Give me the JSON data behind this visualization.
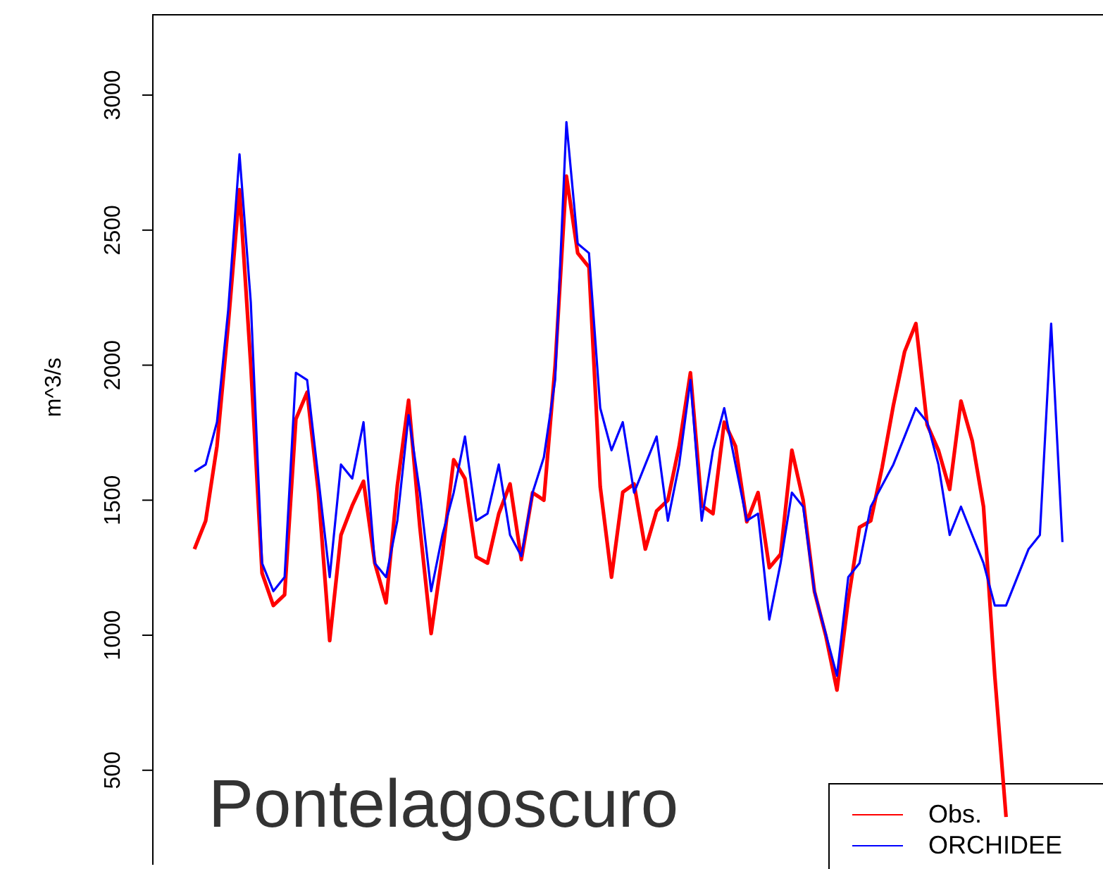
{
  "chart_data": {
    "type": "line",
    "title": "Pontelagoscuro",
    "ylabel": "m^3/s",
    "categories": [
      null,
      null,
      null,
      null,
      null,
      null,
      null,
      null,
      null,
      null,
      null,
      null,
      null,
      null,
      null,
      null,
      null,
      null,
      null,
      null,
      null,
      null,
      null,
      null,
      null,
      null,
      null,
      null,
      null,
      null,
      null,
      null,
      null,
      null,
      null,
      null,
      null,
      null,
      null,
      null,
      null,
      null,
      null,
      null,
      null,
      null,
      null,
      null,
      null,
      null,
      null,
      null,
      null,
      null,
      null,
      null,
      null,
      null,
      null,
      null,
      null,
      null,
      null,
      null,
      null,
      null,
      null,
      null,
      null,
      null,
      null,
      null,
      null,
      null,
      null,
      null,
      null,
      null
    ],
    "series": [
      {
        "name": "Obs.",
        "color": "#ff0000",
        "values": [
          1319,
          1424,
          1700,
          2150,
          2650,
          2000,
          1230,
          1110,
          1150,
          1800,
          1900,
          1528,
          980,
          1371,
          1480,
          1570,
          1267,
          1120,
          1554,
          1870,
          1400,
          1006,
          1300,
          1650,
          1580,
          1290,
          1267,
          1450,
          1560,
          1280,
          1528,
          1500,
          1998,
          2700,
          2415,
          2363,
          1550,
          1215,
          1530,
          1560,
          1319,
          1460,
          1500,
          1700,
          1972,
          1480,
          1450,
          1789,
          1700,
          1420,
          1528,
          1250,
          1300,
          1685,
          1500,
          1163,
          1000,
          797,
          1130,
          1400,
          1424,
          1620,
          1850,
          2050,
          2154,
          1780,
          1685,
          1540,
          1867,
          1720,
          1476,
          850,
          327,
          null,
          null,
          null,
          null,
          null
        ]
      },
      {
        "name": "ORCHIDEE",
        "color": "#0000ff",
        "values": [
          1606,
          1632,
          1789,
          2206,
          2781,
          2233,
          1267,
          1163,
          1215,
          1972,
          1945,
          1580,
          1215,
          1632,
          1580,
          1789,
          1267,
          1215,
          1424,
          1815,
          1528,
          1163,
          1371,
          1528,
          1736,
          1424,
          1450,
          1632,
          1371,
          1293,
          1528,
          1659,
          1945,
          2900,
          2450,
          2415,
          1841,
          1685,
          1789,
          1528,
          1632,
          1736,
          1424,
          1632,
          1945,
          1424,
          1685,
          1841,
          1632,
          1424,
          1450,
          1058,
          1267,
          1528,
          1476,
          1163,
          1006,
          850,
          1215,
          1267,
          1476,
          1554,
          1632,
          1736,
          1841,
          1789,
          1632,
          1371,
          1476,
          1371,
          1267,
          1110,
          1110,
          1215,
          1319,
          1371,
          2154,
          1345
        ]
      }
    ],
    "ylim": [
      150,
      3300
    ],
    "yticks": [
      500,
      1000,
      1500,
      2000,
      2500,
      3000
    ],
    "tick_labels": "y",
    "legend": "bottom right",
    "marker": "none",
    "line_style": "solid"
  }
}
